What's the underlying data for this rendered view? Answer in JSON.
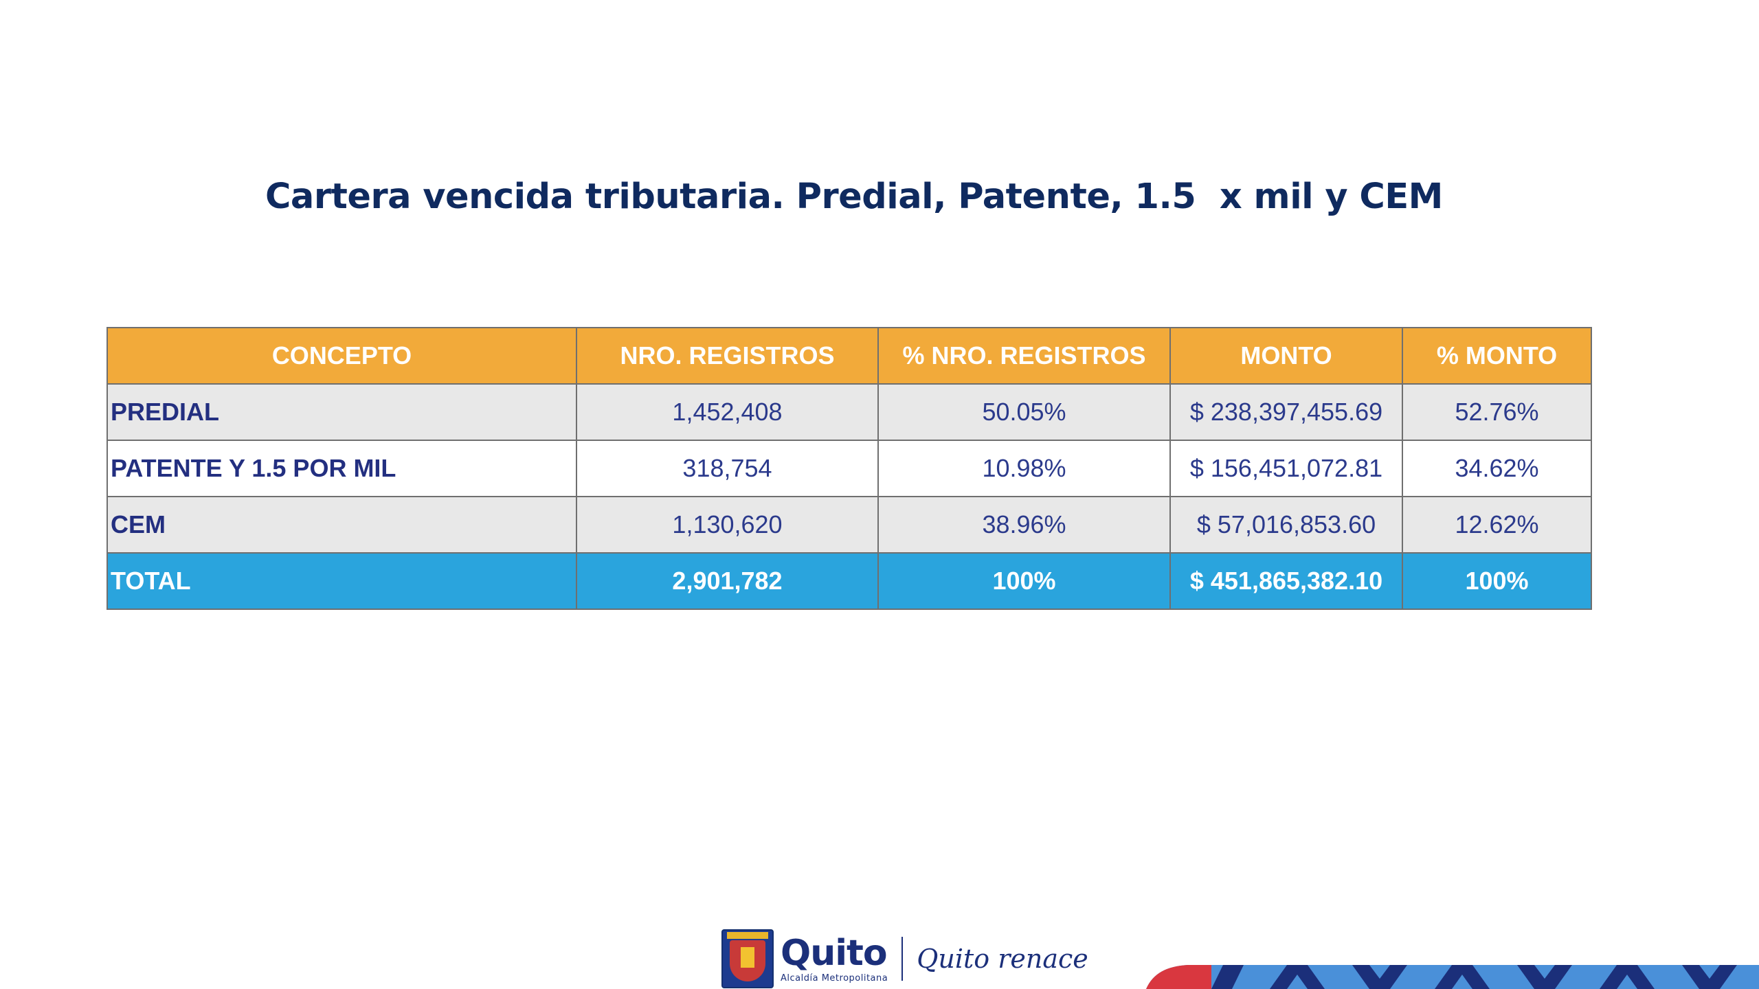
{
  "slide": {
    "title": "Cartera vencida tributaria. Predial, Patente, 1.5  x mil y CEM"
  },
  "table": {
    "headers": [
      "CONCEPTO",
      "NRO. REGISTROS",
      "% NRO. REGISTROS",
      "MONTO",
      "% MONTO"
    ],
    "rows": [
      {
        "concepto": "PREDIAL",
        "registros": "1,452,408",
        "pct_registros": "50.05%",
        "monto": "$ 238,397,455.69",
        "pct_monto": "52.76%"
      },
      {
        "concepto": "PATENTE Y 1.5 POR MIL",
        "registros": "318,754",
        "pct_registros": "10.98%",
        "monto": "$ 156,451,072.81",
        "pct_monto": "34.62%"
      },
      {
        "concepto": "CEM",
        "registros": "1,130,620",
        "pct_registros": "38.96%",
        "monto": "$ 57,016,853.60",
        "pct_monto": "12.62%"
      }
    ],
    "total": {
      "concepto": "TOTAL",
      "registros": "2,901,782",
      "pct_registros": "100%",
      "monto": "$ 451,865,382.10",
      "pct_monto": "100%"
    }
  },
  "footer": {
    "brand_name": "Quito",
    "brand_subtitle": "Alcaldía Metropolitana",
    "slogan": "Quito renace",
    "logo_icon": "city-shield-icon"
  },
  "colors": {
    "title": "#0f2a5f",
    "header_bg": "#f2aa3a",
    "row_alt_bg": "#e8e8e8",
    "total_bg": "#2aa4dd",
    "row_text": "#2b3a8c"
  }
}
